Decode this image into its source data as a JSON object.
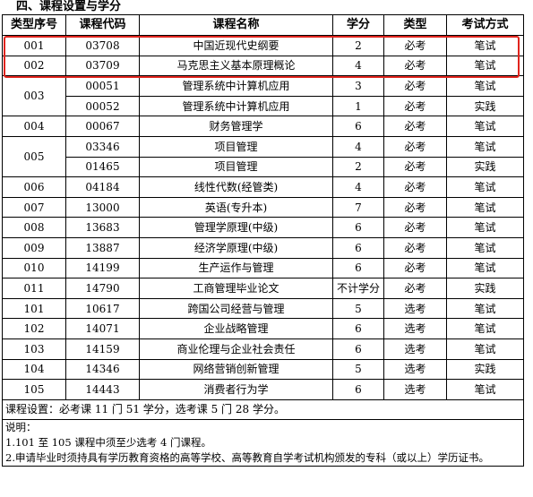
{
  "section_title": "四、课程设置与学分",
  "headers": [
    "类型序号",
    "课程代码",
    "课程名称",
    "学分",
    "类型",
    "考试方式"
  ],
  "rows": [
    {
      "type_no": "001",
      "code": "03708",
      "name": "中国近现代史纲要",
      "credit": "2",
      "category": "必考",
      "exam": "笔试"
    },
    {
      "type_no": "002",
      "code": "03709",
      "name": "马克思主义基本原理概论",
      "credit": "4",
      "category": "必考",
      "exam": "笔试"
    },
    {
      "type_no": "003",
      "code": "00051",
      "name": "管理系统中计算机应用",
      "credit": "3",
      "category": "必考",
      "exam": "笔试"
    },
    {
      "type_no": "",
      "code": "00052",
      "name": "管理系统中计算机应用",
      "credit": "1",
      "category": "必考",
      "exam": "实践"
    },
    {
      "type_no": "004",
      "code": "00067",
      "name": "财务管理学",
      "credit": "6",
      "category": "必考",
      "exam": "笔试"
    },
    {
      "type_no": "005",
      "code": "03346",
      "name": "项目管理",
      "credit": "4",
      "category": "必考",
      "exam": "笔试"
    },
    {
      "type_no": "",
      "code": "01465",
      "name": "项目管理",
      "credit": "2",
      "category": "必考",
      "exam": "实践"
    },
    {
      "type_no": "006",
      "code": "04184",
      "name": "线性代数(经管类)",
      "credit": "4",
      "category": "必考",
      "exam": "笔试"
    },
    {
      "type_no": "007",
      "code": "13000",
      "name": "英语(专升本)",
      "credit": "7",
      "category": "必考",
      "exam": "笔试"
    },
    {
      "type_no": "008",
      "code": "13683",
      "name": "管理学原理(中级)",
      "credit": "6",
      "category": "必考",
      "exam": "笔试"
    },
    {
      "type_no": "009",
      "code": "13887",
      "name": "经济学原理(中级)",
      "credit": "6",
      "category": "必考",
      "exam": "笔试"
    },
    {
      "type_no": "010",
      "code": "14199",
      "name": "生产运作与管理",
      "credit": "6",
      "category": "必考",
      "exam": "笔试"
    },
    {
      "type_no": "011",
      "code": "14790",
      "name": "工商管理毕业论文",
      "credit": "不计学分",
      "category": "必考",
      "exam": "实践"
    },
    {
      "type_no": "101",
      "code": "10617",
      "name": "跨国公司经营与管理",
      "credit": "5",
      "category": "选考",
      "exam": "笔试"
    },
    {
      "type_no": "102",
      "code": "14071",
      "name": "企业战略管理",
      "credit": "6",
      "category": "选考",
      "exam": "笔试"
    },
    {
      "type_no": "103",
      "code": "14159",
      "name": "商业伦理与企业社会责任",
      "credit": "6",
      "category": "选考",
      "exam": "笔试"
    },
    {
      "type_no": "104",
      "code": "14346",
      "name": "网络营销创新管理",
      "credit": "5",
      "category": "选考",
      "exam": "实践"
    },
    {
      "type_no": "105",
      "code": "14443",
      "name": "消费者行为学",
      "credit": "6",
      "category": "选考",
      "exam": "笔试"
    }
  ],
  "course_setting": "课程设置：必考课 11 门 51 学分，选考课 5 门 28 学分。",
  "notes": {
    "title": "说明：",
    "items": [
      "1.101 至 105 课程中须至少选考 4 门课程。",
      "2.申请毕业时须持具有学历教育资格的高等学校、高等教育自学考试机构颁发的专科（或以上）学历证书。"
    ]
  },
  "highlight_color": "#e0241d"
}
